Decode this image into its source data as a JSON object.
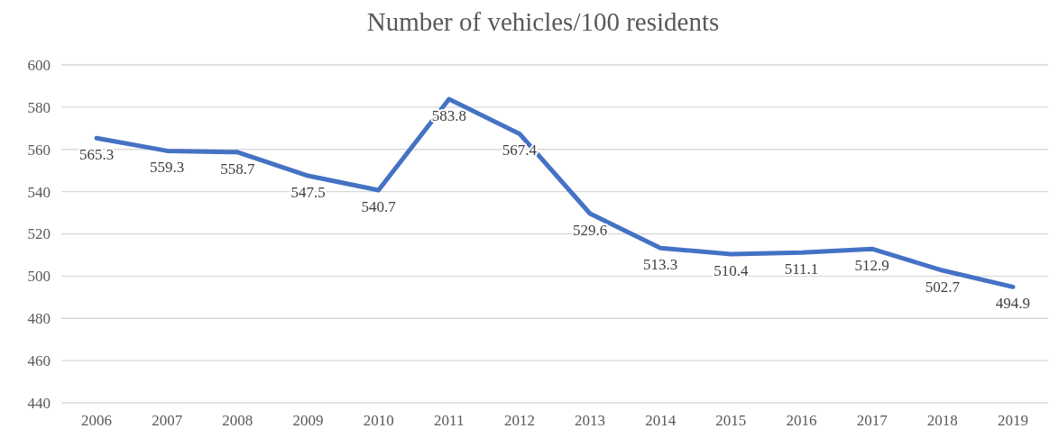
{
  "chart_data": {
    "type": "line",
    "title": "Number of vehicles/100 residents",
    "categories": [
      "2006",
      "2007",
      "2008",
      "2009",
      "2010",
      "2011",
      "2012",
      "2013",
      "2014",
      "2015",
      "2016",
      "2017",
      "2018",
      "2019"
    ],
    "series": [
      {
        "color": "#4472c4",
        "values": [
          565.3,
          559.3,
          558.7,
          547.5,
          540.7,
          583.8,
          567.4,
          529.6,
          513.3,
          510.4,
          511.1,
          512.9,
          502.7,
          494.9
        ]
      }
    ],
    "ylim": [
      440,
      600
    ],
    "yticks": [
      440,
      460,
      480,
      500,
      520,
      540,
      560,
      580,
      600
    ],
    "grid": "y",
    "data_labels": true,
    "marker": "none",
    "line_style": "solid"
  }
}
